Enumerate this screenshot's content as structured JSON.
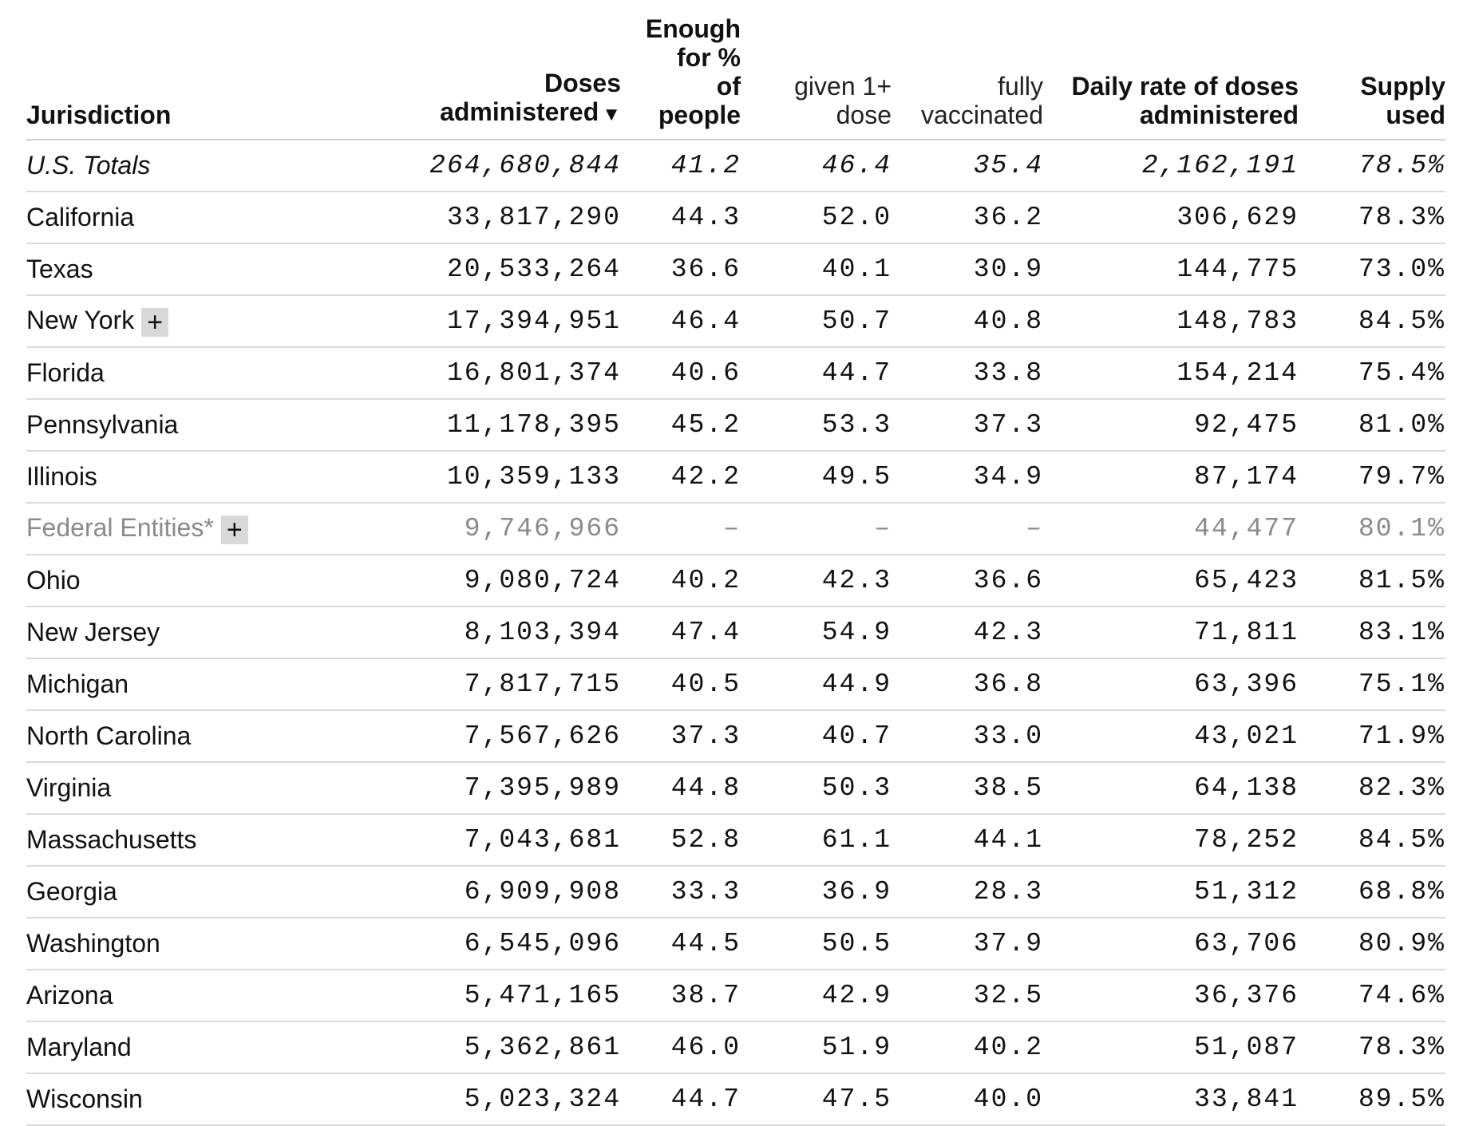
{
  "headers": {
    "jurisdiction": "Jurisdiction",
    "doses_line1": "Doses",
    "doses_line2": "administered",
    "sort_indicator": "▼",
    "enough_line1": "Enough",
    "enough_line2": "for %",
    "enough_line3": "of",
    "enough_line4": "people",
    "given_line1": "given 1+",
    "given_line2": "dose",
    "fully_line1": "fully",
    "fully_line2": "vaccinated",
    "daily_line1": "Daily rate of doses",
    "daily_line2": "administered",
    "supply_line1": "Supply",
    "supply_line2": "used"
  },
  "expand_label": "+",
  "rows": [
    {
      "name": "U.S. Totals",
      "doses": "264,680,844",
      "enough": "41.2",
      "given": "46.4",
      "fully": "35.4",
      "daily": "2,162,191",
      "supply": "78.5%",
      "kind": "total",
      "expandable": false
    },
    {
      "name": "California",
      "doses": "33,817,290",
      "enough": "44.3",
      "given": "52.0",
      "fully": "36.2",
      "daily": "306,629",
      "supply": "78.3%",
      "kind": "state",
      "expandable": false
    },
    {
      "name": "Texas",
      "doses": "20,533,264",
      "enough": "36.6",
      "given": "40.1",
      "fully": "30.9",
      "daily": "144,775",
      "supply": "73.0%",
      "kind": "state",
      "expandable": false
    },
    {
      "name": "New York",
      "doses": "17,394,951",
      "enough": "46.4",
      "given": "50.7",
      "fully": "40.8",
      "daily": "148,783",
      "supply": "84.5%",
      "kind": "state",
      "expandable": true
    },
    {
      "name": "Florida",
      "doses": "16,801,374",
      "enough": "40.6",
      "given": "44.7",
      "fully": "33.8",
      "daily": "154,214",
      "supply": "75.4%",
      "kind": "state",
      "expandable": false
    },
    {
      "name": "Pennsylvania",
      "doses": "11,178,395",
      "enough": "45.2",
      "given": "53.3",
      "fully": "37.3",
      "daily": "92,475",
      "supply": "81.0%",
      "kind": "state",
      "expandable": false
    },
    {
      "name": "Illinois",
      "doses": "10,359,133",
      "enough": "42.2",
      "given": "49.5",
      "fully": "34.9",
      "daily": "87,174",
      "supply": "79.7%",
      "kind": "state",
      "expandable": false
    },
    {
      "name": "Federal Entities*",
      "doses": "9,746,966",
      "enough": "–",
      "given": "–",
      "fully": "–",
      "daily": "44,477",
      "supply": "80.1%",
      "kind": "federal",
      "expandable": true
    },
    {
      "name": "Ohio",
      "doses": "9,080,724",
      "enough": "40.2",
      "given": "42.3",
      "fully": "36.6",
      "daily": "65,423",
      "supply": "81.5%",
      "kind": "state",
      "expandable": false
    },
    {
      "name": "New Jersey",
      "doses": "8,103,394",
      "enough": "47.4",
      "given": "54.9",
      "fully": "42.3",
      "daily": "71,811",
      "supply": "83.1%",
      "kind": "state",
      "expandable": false
    },
    {
      "name": "Michigan",
      "doses": "7,817,715",
      "enough": "40.5",
      "given": "44.9",
      "fully": "36.8",
      "daily": "63,396",
      "supply": "75.1%",
      "kind": "state",
      "expandable": false
    },
    {
      "name": "North Carolina",
      "doses": "7,567,626",
      "enough": "37.3",
      "given": "40.7",
      "fully": "33.0",
      "daily": "43,021",
      "supply": "71.9%",
      "kind": "state",
      "expandable": false
    },
    {
      "name": "Virginia",
      "doses": "7,395,989",
      "enough": "44.8",
      "given": "50.3",
      "fully": "38.5",
      "daily": "64,138",
      "supply": "82.3%",
      "kind": "state",
      "expandable": false
    },
    {
      "name": "Massachusetts",
      "doses": "7,043,681",
      "enough": "52.8",
      "given": "61.1",
      "fully": "44.1",
      "daily": "78,252",
      "supply": "84.5%",
      "kind": "state",
      "expandable": false
    },
    {
      "name": "Georgia",
      "doses": "6,909,908",
      "enough": "33.3",
      "given": "36.9",
      "fully": "28.3",
      "daily": "51,312",
      "supply": "68.8%",
      "kind": "state",
      "expandable": false
    },
    {
      "name": "Washington",
      "doses": "6,545,096",
      "enough": "44.5",
      "given": "50.5",
      "fully": "37.9",
      "daily": "63,706",
      "supply": "80.9%",
      "kind": "state",
      "expandable": false
    },
    {
      "name": "Arizona",
      "doses": "5,471,165",
      "enough": "38.7",
      "given": "42.9",
      "fully": "32.5",
      "daily": "36,376",
      "supply": "74.6%",
      "kind": "state",
      "expandable": false
    },
    {
      "name": "Maryland",
      "doses": "5,362,861",
      "enough": "46.0",
      "given": "51.9",
      "fully": "40.2",
      "daily": "51,087",
      "supply": "78.3%",
      "kind": "state",
      "expandable": false
    },
    {
      "name": "Wisconsin",
      "doses": "5,023,324",
      "enough": "44.7",
      "given": "47.5",
      "fully": "40.0",
      "daily": "33,841",
      "supply": "89.5%",
      "kind": "state",
      "expandable": false
    }
  ]
}
